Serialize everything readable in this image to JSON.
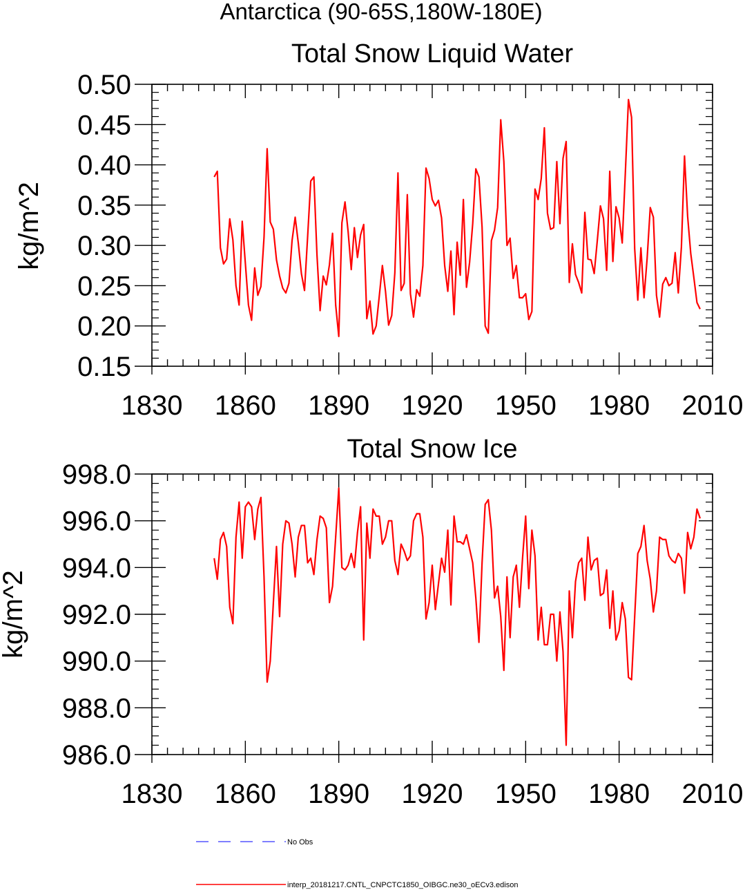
{
  "figure_title": "Antarctica (90-65S,180W-180E)",
  "colors": {
    "series": "#ff0000",
    "obs": "#3333ff",
    "axis": "#000000"
  },
  "legend": {
    "obs_label": "No Obs",
    "model_label": "interp_20181217.CNTL_CNPCTC1850_OIBGC.ne30_oECv3.edison"
  },
  "chart_data": [
    {
      "type": "line",
      "title": "Total Snow Liquid Water",
      "xlabel": "",
      "ylabel": "kg/m^2",
      "xlim": [
        1830,
        2010
      ],
      "ylim": [
        0.15,
        0.5
      ],
      "xticks": [
        "1830",
        "1860",
        "1890",
        "1920",
        "1950",
        "1980",
        "2010"
      ],
      "yticks": [
        "0.15",
        "0.20",
        "0.25",
        "0.30",
        "0.35",
        "0.40",
        "0.45",
        "0.50"
      ],
      "series": [
        {
          "name": "interp_20181217.CNTL_CNPCTC1850_OIBGC.ne30_oECv3.edison",
          "x_start": 1850,
          "values": [
            0.385,
            0.392,
            0.297,
            0.277,
            0.283,
            0.333,
            0.307,
            0.25,
            0.226,
            0.33,
            0.278,
            0.226,
            0.207,
            0.272,
            0.238,
            0.249,
            0.31,
            0.42,
            0.329,
            0.32,
            0.282,
            0.262,
            0.247,
            0.241,
            0.253,
            0.306,
            0.335,
            0.303,
            0.265,
            0.244,
            0.311,
            0.38,
            0.385,
            0.288,
            0.219,
            0.262,
            0.251,
            0.276,
            0.315,
            0.226,
            0.187,
            0.328,
            0.354,
            0.317,
            0.27,
            0.322,
            0.285,
            0.313,
            0.326,
            0.209,
            0.231,
            0.19,
            0.2,
            0.237,
            0.275,
            0.243,
            0.201,
            0.213,
            0.266,
            0.39,
            0.244,
            0.253,
            0.363,
            0.24,
            0.211,
            0.245,
            0.237,
            0.275,
            0.396,
            0.383,
            0.357,
            0.349,
            0.356,
            0.334,
            0.275,
            0.243,
            0.293,
            0.214,
            0.304,
            0.263,
            0.357,
            0.248,
            0.279,
            0.327,
            0.395,
            0.385,
            0.323,
            0.2,
            0.191,
            0.306,
            0.319,
            0.347,
            0.456,
            0.404,
            0.3,
            0.309,
            0.259,
            0.275,
            0.235,
            0.235,
            0.24,
            0.208,
            0.218,
            0.37,
            0.357,
            0.383,
            0.446,
            0.34,
            0.32,
            0.322,
            0.404,
            0.327,
            0.408,
            0.429,
            0.254,
            0.302,
            0.264,
            0.254,
            0.241,
            0.341,
            0.283,
            0.282,
            0.265,
            0.306,
            0.349,
            0.333,
            0.269,
            0.392,
            0.28,
            0.348,
            0.334,
            0.303,
            0.39,
            0.481,
            0.459,
            0.296,
            0.232,
            0.297,
            0.235,
            0.284,
            0.347,
            0.335,
            0.238,
            0.211,
            0.252,
            0.26,
            0.25,
            0.253,
            0.291,
            0.241,
            0.298,
            0.411,
            0.336,
            0.29,
            0.26,
            0.229,
            0.221
          ]
        }
      ]
    },
    {
      "type": "line",
      "title": "Total Snow Ice",
      "xlabel": "",
      "ylabel": "kg/m^2",
      "xlim": [
        1830,
        2010
      ],
      "ylim": [
        986.0,
        998.0
      ],
      "xticks": [
        "1830",
        "1860",
        "1890",
        "1920",
        "1950",
        "1980",
        "2010"
      ],
      "yticks": [
        "986.0",
        "988.0",
        "990.0",
        "992.0",
        "994.0",
        "996.0",
        "998.0"
      ],
      "series": [
        {
          "name": "interp_20181217.CNTL_CNPCTC1850_OIBGC.ne30_oECv3.edison",
          "x_start": 1850,
          "values": [
            994.4,
            993.5,
            995.2,
            995.5,
            994.9,
            992.3,
            991.6,
            995.3,
            996.8,
            994.4,
            996.6,
            996.8,
            996.6,
            995.2,
            996.5,
            997.0,
            993.6,
            989.1,
            990.0,
            992.5,
            994.9,
            991.9,
            995.0,
            996.0,
            995.9,
            995.0,
            993.6,
            995.3,
            995.8,
            995.8,
            994.2,
            994.4,
            993.7,
            995.2,
            996.2,
            996.1,
            995.7,
            992.5,
            993.2,
            995.3,
            997.4,
            994.0,
            993.9,
            994.1,
            994.6,
            994.0,
            995.5,
            996.6,
            990.9,
            995.9,
            994.4,
            996.5,
            996.2,
            996.2,
            995.0,
            995.3,
            996.0,
            996.0,
            994.3,
            993.7,
            995.0,
            994.7,
            994.3,
            994.5,
            996.0,
            996.3,
            996.3,
            995.3,
            991.8,
            992.5,
            994.1,
            992.2,
            993.3,
            994.4,
            993.8,
            995.6,
            992.4,
            996.2,
            995.1,
            995.1,
            995.0,
            995.4,
            994.8,
            994.2,
            992.7,
            990.8,
            994.2,
            996.7,
            996.9,
            995.6,
            992.7,
            993.2,
            991.9,
            989.6,
            993.6,
            991.0,
            993.6,
            994.1,
            992.3,
            994.4,
            996.2,
            993.1,
            995.6,
            994.5,
            990.9,
            992.3,
            990.7,
            990.7,
            992.0,
            992.0,
            990.0,
            992.1,
            990.4,
            986.4,
            993.0,
            991.0,
            993.4,
            994.2,
            994.4,
            992.6,
            995.3,
            993.9,
            994.3,
            994.4,
            992.8,
            992.9,
            993.9,
            991.4,
            993.0,
            990.9,
            991.3,
            992.5,
            991.8,
            989.3,
            989.2,
            991.9,
            994.6,
            994.9,
            995.8,
            994.3,
            993.5,
            992.1,
            993.0,
            995.3,
            995.2,
            995.2,
            994.5,
            994.3,
            994.2,
            994.6,
            994.4,
            992.9,
            995.5,
            994.8,
            995.3,
            996.5,
            996.1
          ]
        }
      ]
    }
  ]
}
